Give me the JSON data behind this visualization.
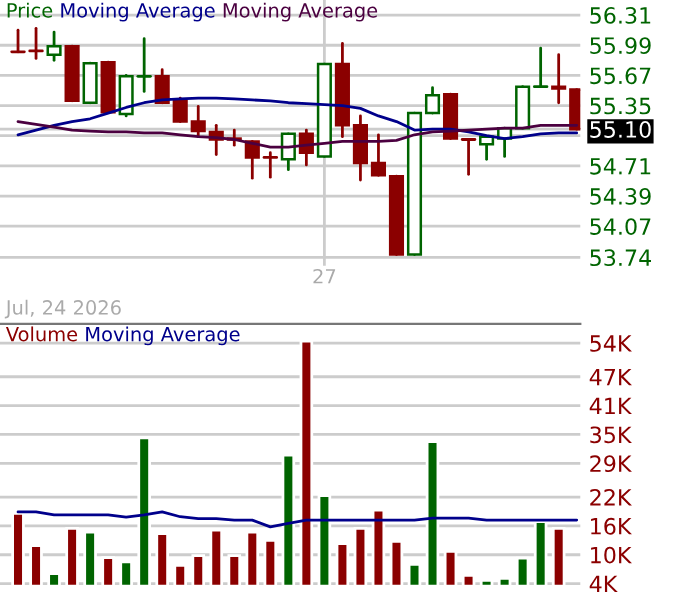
{
  "chart_data": [
    {
      "type": "candlestick",
      "legend": "top left",
      "grid": true,
      "tick_labels": "xy",
      "categories": [
        null,
        null,
        null,
        null,
        null,
        null,
        null,
        null,
        null,
        null,
        null,
        null,
        null,
        null,
        null,
        null,
        null,
        "27",
        null,
        null,
        null,
        null,
        null,
        null,
        null,
        null,
        null,
        null,
        null,
        null,
        null,
        null
      ],
      "ylim": [
        53.65,
        56.47
      ],
      "yticks": [
        56.31,
        55.99,
        55.67,
        55.35,
        {
          "value": 55.03,
          "label": null
        },
        {
          "value": 55.1,
          "label": "55.10"
        },
        54.71,
        54.39,
        54.07,
        53.74
      ],
      "series": [
        {
          "name": "Price",
          "color": "#006400",
          "colors": [
            "#8b0000",
            "#8b0000",
            "#006400",
            "#8b0000",
            "#006400",
            "#8b0000",
            "#006400",
            "#006400",
            "#8b0000",
            "#8b0000",
            "#8b0000",
            "#8b0000",
            "#8b0000",
            "#8b0000",
            "#8b0000",
            "#006400",
            "#8b0000",
            "#006400",
            "#8b0000",
            "#8b0000",
            "#8b0000",
            "#8b0000",
            "#006400",
            "#006400",
            "#8b0000",
            "#8b0000",
            "#006400",
            "#006400",
            "#006400",
            "#006400",
            "#8b0000",
            "#8b0000"
          ],
          "ohlc": [
            [
              55.92,
              56.15,
              55.92,
              55.92
            ],
            [
              55.93,
              56.17,
              55.85,
              55.93
            ],
            [
              55.89,
              56.13,
              55.83,
              55.98
            ],
            [
              55.98,
              55.98,
              55.4,
              55.4
            ],
            [
              55.38,
              55.8,
              55.38,
              55.8
            ],
            [
              55.81,
              55.81,
              55.28,
              55.28
            ],
            [
              55.26,
              55.67,
              55.24,
              55.66
            ],
            [
              55.66,
              56.06,
              55.5,
              55.66
            ],
            [
              55.66,
              55.73,
              55.38,
              55.38
            ],
            [
              55.4,
              55.43,
              55.18,
              55.18
            ],
            [
              55.18,
              55.34,
              55.02,
              55.08
            ],
            [
              55.07,
              55.14,
              54.83,
              54.99
            ],
            [
              55.0,
              55.09,
              54.93,
              54.99
            ],
            [
              54.97,
              54.97,
              54.58,
              54.8
            ],
            [
              54.8,
              54.85,
              54.59,
              54.8
            ],
            [
              54.78,
              55.05,
              54.67,
              55.05
            ],
            [
              55.05,
              55.09,
              54.72,
              54.85
            ],
            [
              54.81,
              55.79,
              54.81,
              55.79
            ],
            [
              55.79,
              56.01,
              55.02,
              55.14
            ],
            [
              55.14,
              55.24,
              54.56,
              54.74
            ],
            [
              54.74,
              55.04,
              54.61,
              54.61
            ],
            [
              54.6,
              54.6,
              53.77,
              53.77
            ],
            [
              53.77,
              55.27,
              53.77,
              55.27
            ],
            [
              55.27,
              55.54,
              55.27,
              55.46
            ],
            [
              55.47,
              55.47,
              55.0,
              55.0
            ],
            [
              54.99,
              54.99,
              54.62,
              54.99
            ],
            [
              54.94,
              55.02,
              54.78,
              55.02
            ],
            [
              55.0,
              55.11,
              54.81,
              55.11
            ],
            [
              55.11,
              55.55,
              55.11,
              55.55
            ],
            [
              55.55,
              55.96,
              55.55,
              55.55
            ],
            [
              55.55,
              55.89,
              55.38,
              55.53
            ],
            [
              55.52,
              55.52,
              55.1,
              55.1
            ]
          ]
        },
        {
          "name": "Moving Average",
          "type": "line",
          "color": "#00008b",
          "values": [
            55.04,
            55.09,
            55.14,
            55.18,
            55.21,
            55.27,
            55.33,
            55.38,
            55.41,
            55.42,
            55.43,
            55.43,
            55.42,
            55.41,
            55.4,
            55.38,
            55.37,
            55.36,
            55.35,
            55.32,
            55.24,
            55.18,
            55.09,
            55.1,
            55.1,
            55.07,
            55.03,
            55.0,
            55.02,
            55.05,
            55.06,
            55.06
          ]
        },
        {
          "name": "Moving Average",
          "type": "line",
          "color": "#4b0040",
          "values": [
            55.18,
            55.15,
            55.12,
            55.09,
            55.08,
            55.07,
            55.07,
            55.06,
            55.06,
            55.04,
            55.02,
            55.01,
            54.99,
            54.95,
            54.91,
            54.91,
            54.93,
            54.95,
            54.97,
            54.97,
            54.97,
            54.98,
            55.04,
            55.07,
            55.08,
            55.09,
            55.1,
            55.11,
            55.11,
            55.14,
            55.14,
            55.14
          ]
        }
      ]
    },
    {
      "type": "bar",
      "legend": "top left",
      "grid": true,
      "tick_labels": "y",
      "annotations": [
        "Jul, 24 2026"
      ],
      "categories": [
        null,
        null,
        null,
        null,
        null,
        null,
        null,
        null,
        null,
        null,
        null,
        null,
        null,
        null,
        null,
        null,
        null,
        null,
        null,
        null,
        null,
        null,
        null,
        null,
        null,
        null,
        null,
        null,
        null,
        null,
        null,
        null
      ],
      "ylim": [
        3.5,
        58
      ],
      "yticks": [
        {
          "value": 54,
          "label": "54K"
        },
        {
          "value": 47,
          "label": "47K"
        },
        {
          "value": 41,
          "label": "41K"
        },
        {
          "value": 35,
          "label": "35K"
        },
        {
          "value": 29,
          "label": "29K"
        },
        {
          "value": 22,
          "label": "22K"
        },
        {
          "value": 16,
          "label": "16K"
        },
        {
          "value": 10,
          "label": "10K"
        },
        {
          "value": 4,
          "label": "4K"
        }
      ],
      "series": [
        {
          "name": "Volume",
          "color": "#8b0000",
          "colors": [
            "#8b0000",
            "#8b0000",
            "#006400",
            "#8b0000",
            "#006400",
            "#8b0000",
            "#006400",
            "#006400",
            "#8b0000",
            "#8b0000",
            "#8b0000",
            "#8b0000",
            "#8b0000",
            "#8b0000",
            "#8b0000",
            "#006400",
            "#8b0000",
            "#006400",
            "#8b0000",
            "#8b0000",
            "#8b0000",
            "#8b0000",
            "#006400",
            "#006400",
            "#8b0000",
            "#8b0000",
            "#006400",
            "#006400",
            "#006400",
            "#006400",
            "#8b0000",
            "#8b0000"
          ],
          "values": [
            18.6,
            11.9,
            6.1,
            15.5,
            14.7,
            9.4,
            8.5,
            34.3,
            14.4,
            7.8,
            9.8,
            15.1,
            9.8,
            14.7,
            13.0,
            30.7,
            54.4,
            22.3,
            12.3,
            15.5,
            19.3,
            12.8,
            8.0,
            33.5,
            10.7,
            5.7,
            4.7,
            5.1,
            9.3,
            16.9,
            15.5,
            null
          ]
        },
        {
          "name": "Moving Average",
          "type": "line",
          "color": "#00008b",
          "values": [
            18.9,
            18.9,
            18.3,
            18.3,
            18.3,
            18.3,
            17.8,
            18.3,
            18.9,
            17.9,
            17.5,
            17.5,
            17.2,
            17.2,
            15.8,
            16.5,
            17.2,
            17.2,
            17.2,
            17.2,
            17.2,
            17.2,
            17.2,
            17.6,
            17.6,
            17.6,
            17.2,
            17.2,
            17.2,
            17.2,
            17.2,
            17.2
          ]
        }
      ]
    }
  ]
}
